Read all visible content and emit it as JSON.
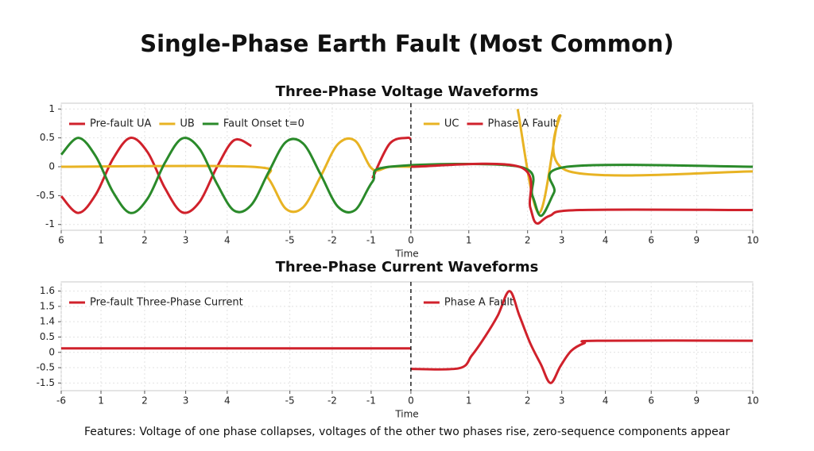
{
  "title": "Single-Phase Earth Fault (Most Common)",
  "footer": "Features: Voltage of one phase collapses, voltages of the other two phases rise, zero-sequence components appear",
  "chart_data": [
    {
      "type": "line",
      "title": "Three-Phase Voltage Waveforms",
      "xlabel": "Time",
      "xlim": [
        0,
        16
      ],
      "ylim": [
        -1.1,
        1.1
      ],
      "grid": true,
      "vline": 8.09,
      "xticks": [
        {
          "value": 0,
          "label": "6"
        },
        {
          "value": 0.92,
          "label": "1"
        },
        {
          "value": 1.93,
          "label": "2"
        },
        {
          "value": 2.88,
          "label": "3"
        },
        {
          "value": 3.84,
          "label": "4"
        },
        {
          "value": 5.29,
          "label": "-5"
        },
        {
          "value": 6.27,
          "label": "-2"
        },
        {
          "value": 7.17,
          "label": "-1"
        },
        {
          "value": 8.09,
          "label": "0"
        },
        {
          "value": 9.43,
          "label": "1"
        },
        {
          "value": 10.79,
          "label": "2"
        },
        {
          "value": 11.58,
          "label": "3"
        },
        {
          "value": 12.59,
          "label": "4"
        },
        {
          "value": 13.65,
          "label": "6"
        },
        {
          "value": 14.7,
          "label": "9"
        },
        {
          "value": 16,
          "label": "10"
        }
      ],
      "yticks": [
        -1,
        -0.5,
        0,
        0.5,
        1
      ],
      "series": [
        {
          "name": "Pre-fault UA",
          "color": "#d0212b",
          "x": [
            0,
            0.4,
            0.8,
            1.2,
            1.6,
            2.0,
            2.4,
            2.8,
            3.2,
            3.6,
            4.0,
            4.4,
            4.8,
            7.2,
            7.6,
            8.0,
            8.09
          ],
          "values": [
            -0.51,
            -0.8,
            -0.48,
            0.14,
            0.5,
            0.25,
            -0.37,
            -0.79,
            -0.61,
            -0.01,
            0.46,
            0.36,
            null,
            -0.2,
            0.4,
            0.5,
            0.47
          ]
        },
        {
          "name": "UB",
          "color": "#e8b323",
          "x": [
            0,
            4.4,
            4.8,
            5.2,
            5.6,
            6.0,
            6.4,
            6.8,
            7.2,
            7.6,
            8.09
          ],
          "values": [
            0,
            0,
            -0.21,
            -0.73,
            -0.7,
            -0.17,
            0.39,
            0.45,
            -0.04,
            0,
            0
          ]
        },
        {
          "name": "UC",
          "color": "#e8b323",
          "x": [
            8.09,
            10.56,
            11.05,
            11.53,
            11.75,
            16
          ],
          "values": [
            null,
            1.0,
            -0.8,
            0.88,
            -0.08,
            -0.08
          ]
        },
        {
          "name": "Fault Onset t=0",
          "color": "#2a8a2a",
          "x": [
            0,
            0.4,
            0.8,
            1.2,
            1.6,
            2.0,
            2.4,
            2.8,
            3.2,
            3.6,
            4.0,
            4.4,
            4.8,
            5.2,
            5.6,
            6.0,
            6.4,
            6.8,
            7.2,
            7.6,
            10.6,
            10.9,
            11.1,
            11.4,
            11.7,
            16
          ],
          "values": [
            0.21,
            0.5,
            0.18,
            -0.44,
            -0.8,
            -0.55,
            0.07,
            0.49,
            0.31,
            -0.29,
            -0.76,
            -0.66,
            -0.09,
            0.43,
            0.4,
            -0.13,
            -0.69,
            -0.75,
            -0.26,
            0,
            0,
            -0.5,
            -0.85,
            -0.45,
            0,
            0
          ]
        },
        {
          "name": "Phase A Fault",
          "color": "#d0212b",
          "x": [
            8.09,
            10.6,
            10.85,
            11.0,
            11.3,
            12.0,
            16
          ],
          "values": [
            0,
            0,
            -0.7,
            -0.98,
            -0.85,
            -0.75,
            -0.75
          ]
        }
      ]
    },
    {
      "type": "line",
      "title": "Three-Phase Current Waveforms",
      "xlabel": "Time",
      "xlim": [
        0,
        16
      ],
      "ylim": [
        -1.25,
        2.3
      ],
      "grid": true,
      "vline": 8.09,
      "xticks": [
        {
          "value": 0,
          "label": "-6"
        },
        {
          "value": 0.92,
          "label": "1"
        },
        {
          "value": 1.93,
          "label": "2"
        },
        {
          "value": 2.88,
          "label": "3"
        },
        {
          "value": 3.84,
          "label": "4"
        },
        {
          "value": 5.29,
          "label": "-5"
        },
        {
          "value": 6.27,
          "label": "-2"
        },
        {
          "value": 7.17,
          "label": "-1"
        },
        {
          "value": 8.09,
          "label": "0"
        },
        {
          "value": 9.43,
          "label": "1"
        },
        {
          "value": 10.79,
          "label": "2"
        },
        {
          "value": 11.58,
          "label": "3"
        },
        {
          "value": 12.59,
          "label": "4"
        },
        {
          "value": 13.65,
          "label": "6"
        },
        {
          "value": 14.7,
          "label": "9"
        },
        {
          "value": 16,
          "label": "10"
        }
      ],
      "yticks": [
        {
          "value": -1,
          "label": "-1.5"
        },
        -0.5,
        0,
        0.5,
        {
          "value": 1,
          "label": "1.4"
        },
        1.5,
        {
          "value": 2,
          "label": "1.6"
        }
      ],
      "series": [
        {
          "name": "Pre-fault Three-Phase Current",
          "color": "#d0212b",
          "x": [
            0,
            8.09
          ],
          "values": [
            0.13,
            0.13
          ]
        },
        {
          "name": "Phase A Fault",
          "color": "#d0212b",
          "x": [
            8.09,
            9.2,
            9.5,
            9.8,
            10.1,
            10.37,
            10.6,
            10.85,
            11.1,
            11.32,
            11.55,
            11.8,
            12.1,
            12.4,
            16
          ],
          "values": [
            -0.54,
            -0.52,
            -0.1,
            0.5,
            1.2,
            2.0,
            1.2,
            0.3,
            -0.4,
            -1.0,
            -0.45,
            0.05,
            0.3,
            0.38,
            0.38
          ]
        }
      ]
    }
  ]
}
